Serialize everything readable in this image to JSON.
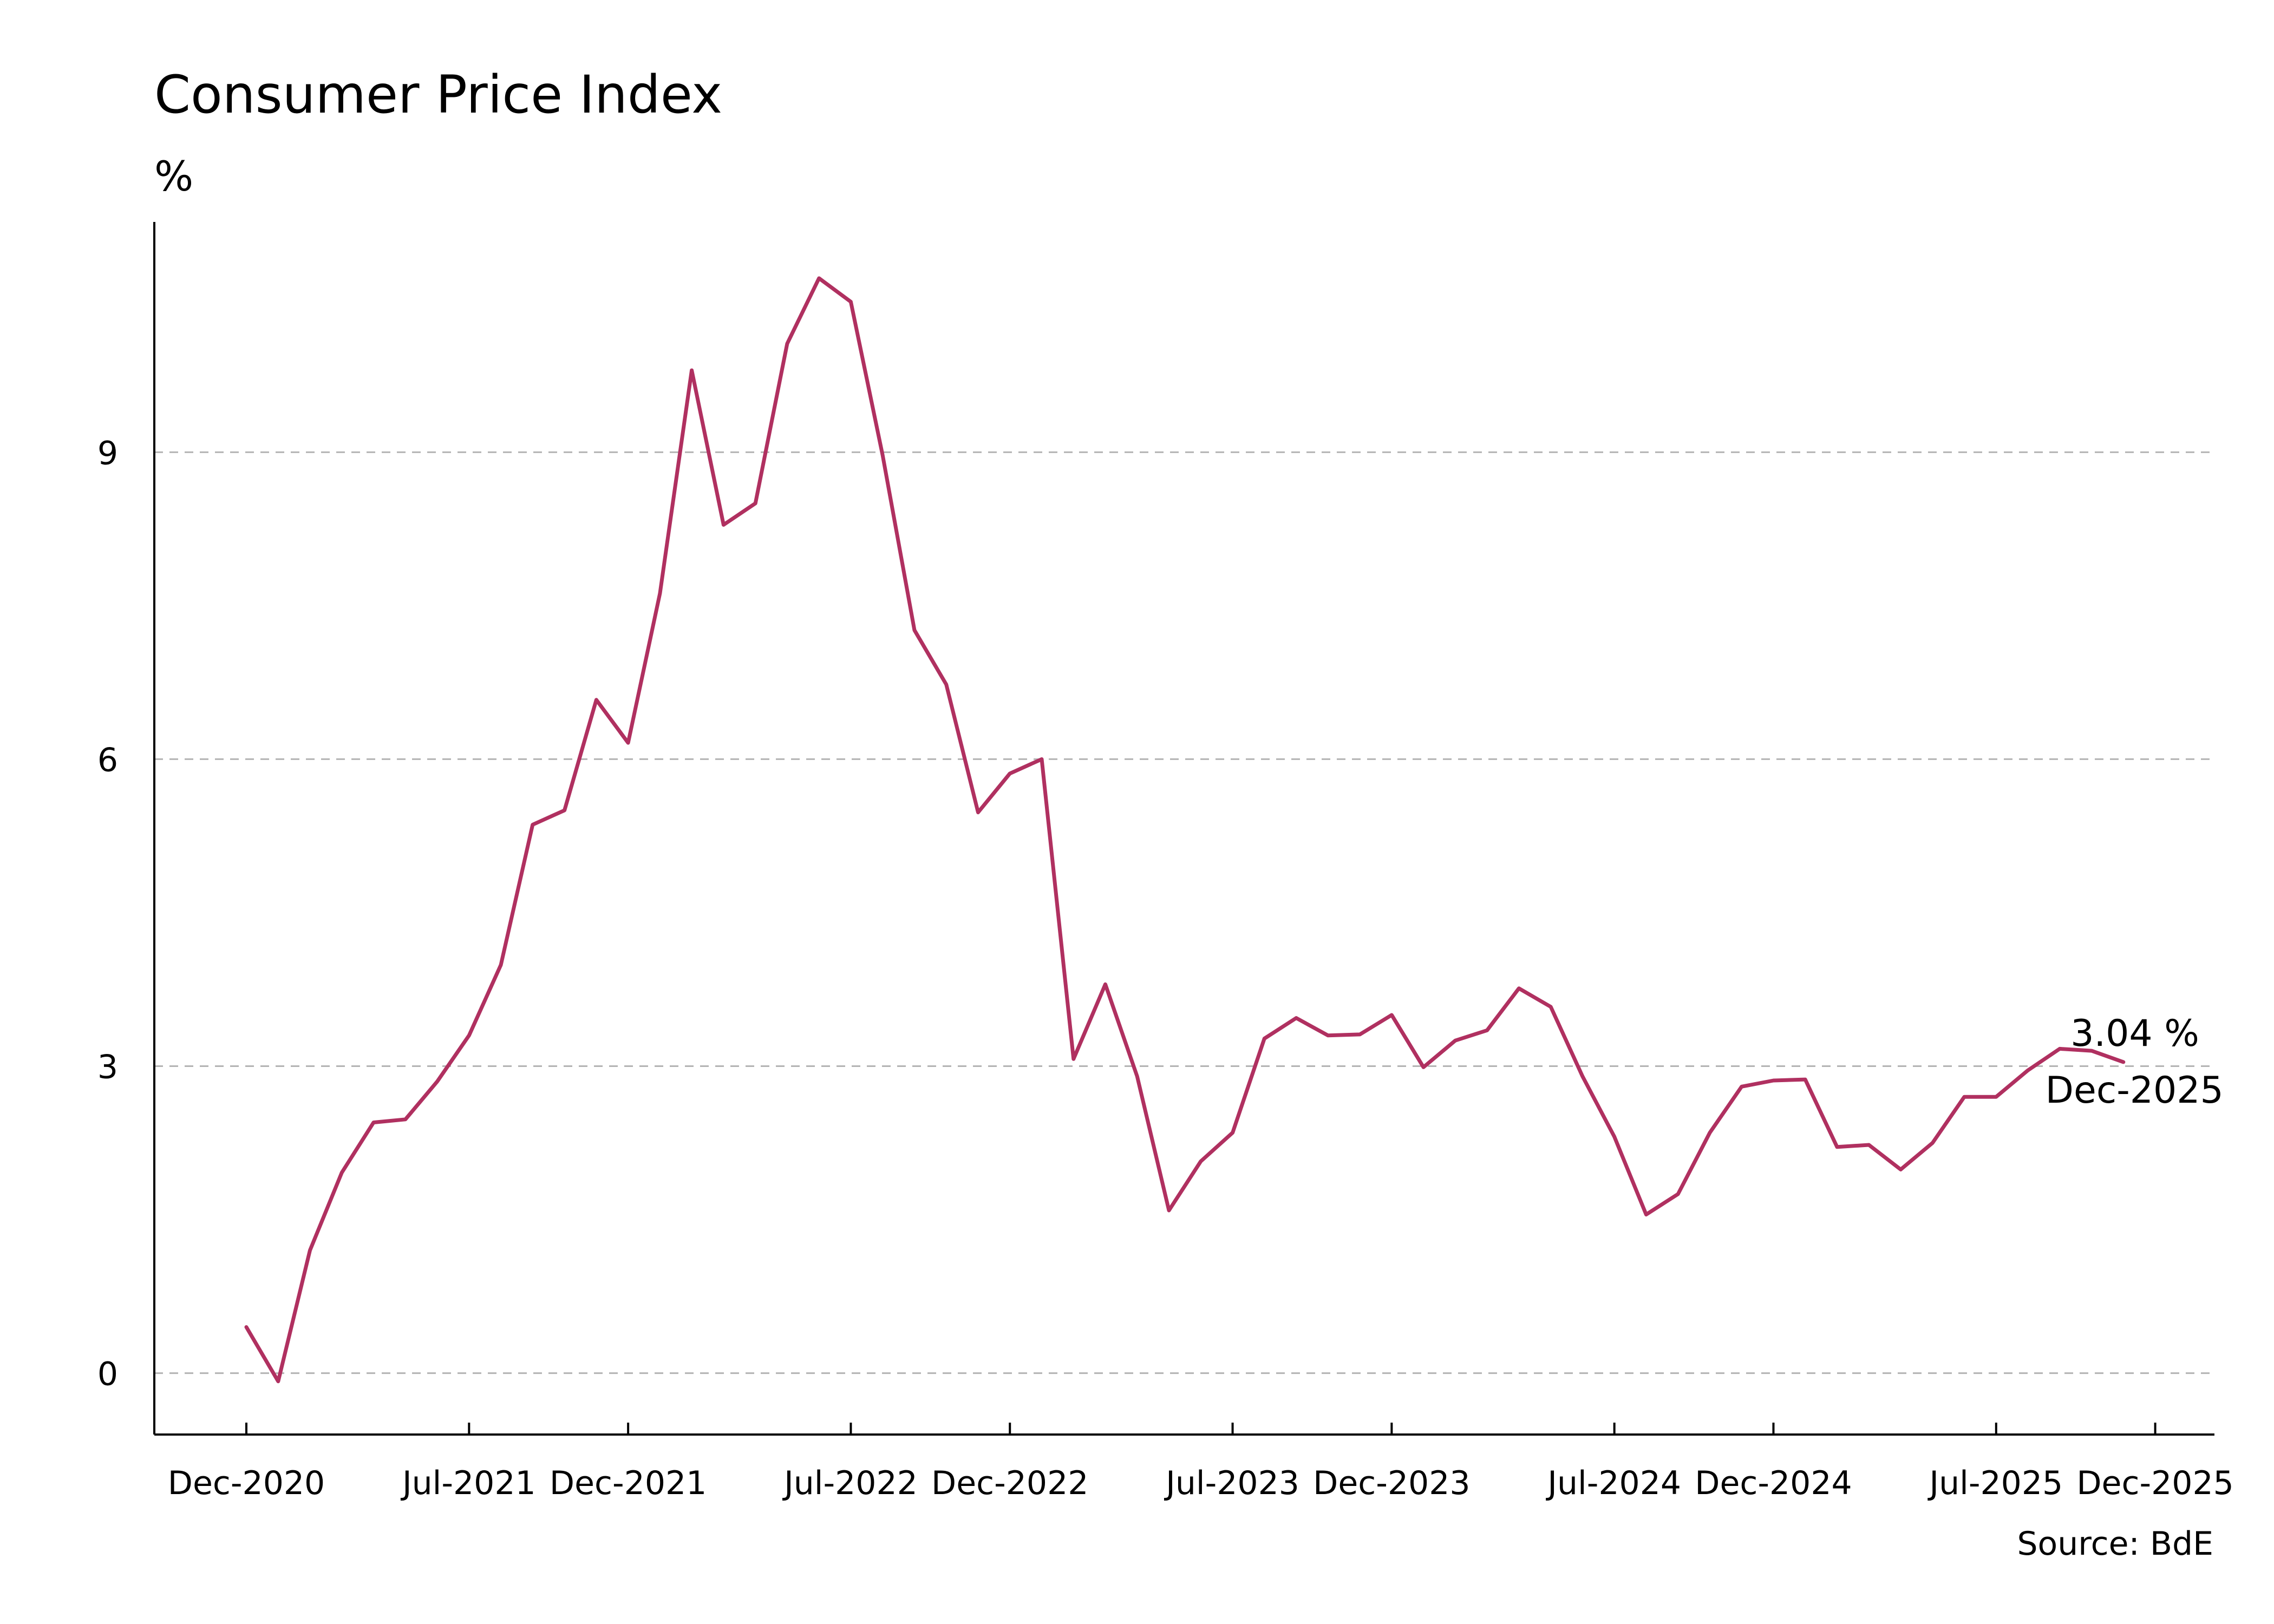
{
  "chart_data": {
    "type": "line",
    "title": "Consumer Price Index",
    "unit_label": "%",
    "source": "Source: BdE",
    "xlabel": "",
    "ylabel": "%",
    "x_tick_labels": [
      "Dec-2020",
      "Jul-2021",
      "Dec-2021",
      "Jul-2022",
      "Dec-2022",
      "Jul-2023",
      "Dec-2023",
      "Jul-2024",
      "Dec-2024",
      "Jul-2025",
      "Dec-2025"
    ],
    "y_ticks": [
      0,
      3,
      6,
      9
    ],
    "ylim": [
      -0.6,
      11.25
    ],
    "grid": "horizontal-dashed",
    "colors": {
      "line": "#b03060",
      "grid": "#b4b4b4",
      "axis": "#000000"
    },
    "series": [
      {
        "name": "Consumer Price Index",
        "values": [
          0.45,
          -0.08,
          1.2,
          1.96,
          2.45,
          2.48,
          2.85,
          3.3,
          3.99,
          5.36,
          5.5,
          6.58,
          6.16,
          7.62,
          9.8,
          8.29,
          8.5,
          10.06,
          10.7,
          10.47,
          8.97,
          7.26,
          6.73,
          5.48,
          5.86,
          6.0,
          3.07,
          3.8,
          2.9,
          1.59,
          2.07,
          2.35,
          3.27,
          3.47,
          3.3,
          3.31,
          3.5,
          2.99,
          3.25,
          3.35,
          3.76,
          3.58,
          2.9,
          2.31,
          1.55,
          1.75,
          2.35,
          2.8,
          2.86,
          2.87,
          2.21,
          2.23,
          1.99,
          2.25,
          2.7,
          2.7,
          2.96,
          3.17,
          3.15,
          3.04
        ]
      }
    ],
    "annotation": {
      "value_label": "3.04 %",
      "date_label": "Dec-2025"
    }
  }
}
